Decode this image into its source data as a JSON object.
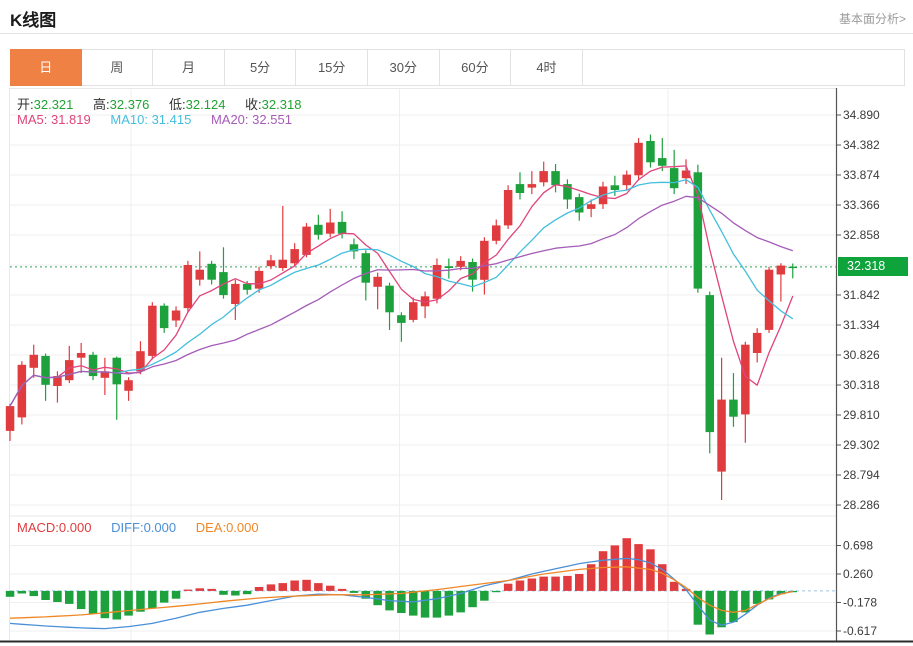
{
  "header": {
    "title": "K线图",
    "link_label": "基本面分析>"
  },
  "tabs": {
    "items": [
      "日",
      "周",
      "月",
      "5分",
      "15分",
      "30分",
      "60分",
      "4时"
    ],
    "active_index": 0
  },
  "ohlc": {
    "open_label": "开:",
    "open": "32.321",
    "high_label": "高:",
    "high": "32.376",
    "low_label": "低:",
    "low": "32.124",
    "close_label": "收:",
    "close": "32.318"
  },
  "ma": {
    "ma5_label": "MA5:",
    "ma5": "31.819",
    "ma10_label": "MA10:",
    "ma10": "31.415",
    "ma20_label": "MA20:",
    "ma20": "32.551"
  },
  "macd_legend": {
    "macd_label": "MACD:",
    "macd": "0.000",
    "diff_label": "DIFF:",
    "diff": "0.000",
    "dea_label": "DEA:",
    "dea": "0.000"
  },
  "current_price": "32.318",
  "colors": {
    "up": "#e03b3e",
    "down": "#1ca13d",
    "badge_bg": "#0fa33c",
    "ma5": "#e0447c",
    "ma10": "#44bedd",
    "ma20": "#a55cb8",
    "diff": "#4a8fd8",
    "dea": "#ef8726",
    "tab_active_bg": "#ef8144",
    "price_line": "#2ba55a",
    "macd_zero_line": "#9cc4e4",
    "ohlc_value": "#21a334",
    "grid": "#efefef",
    "axis_line": "#555555",
    "bottom_line": "#2b2b2b",
    "label_text": "#3b3b3b"
  },
  "chart_data": {
    "type": "candlestick",
    "main_panel": {
      "y_axis_labels": [
        34.89,
        34.382,
        33.874,
        33.366,
        32.858,
        31.842,
        31.334,
        30.826,
        30.318,
        29.81,
        29.302,
        28.794,
        28.286
      ],
      "unlabeled_gridline_value": 32.35,
      "current_price": 32.318,
      "ma_periods": [
        5,
        10,
        20
      ],
      "candle_format": [
        "open",
        "close",
        "low",
        "high"
      ],
      "candles": [
        [
          29.54,
          29.96,
          29.37,
          30.0
        ],
        [
          29.77,
          30.66,
          29.65,
          30.72
        ],
        [
          30.61,
          30.83,
          30.44,
          31.0
        ],
        [
          30.81,
          30.32,
          30.05,
          30.85
        ],
        [
          30.3,
          30.47,
          30.02,
          30.55
        ],
        [
          30.4,
          30.74,
          30.35,
          30.98
        ],
        [
          30.78,
          30.86,
          30.52,
          31.03
        ],
        [
          30.83,
          30.47,
          30.4,
          30.88
        ],
        [
          30.44,
          30.55,
          30.15,
          30.78
        ],
        [
          30.78,
          30.33,
          29.73,
          30.8
        ],
        [
          30.22,
          30.4,
          30.05,
          30.45
        ],
        [
          30.55,
          30.89,
          30.5,
          31.06
        ],
        [
          30.81,
          31.66,
          30.75,
          31.72
        ],
        [
          31.66,
          31.28,
          31.2,
          31.7
        ],
        [
          31.41,
          31.58,
          31.3,
          31.65
        ],
        [
          31.62,
          32.35,
          31.55,
          32.42
        ],
        [
          32.1,
          32.27,
          32.0,
          32.58
        ],
        [
          32.37,
          32.1,
          32.02,
          32.42
        ],
        [
          32.23,
          31.84,
          31.78,
          32.65
        ],
        [
          31.69,
          32.03,
          31.42,
          32.1
        ],
        [
          32.03,
          31.93,
          31.85,
          32.08
        ],
        [
          31.95,
          32.25,
          31.88,
          32.32
        ],
        [
          32.33,
          32.43,
          32.28,
          32.52
        ],
        [
          32.3,
          32.44,
          32.25,
          33.35
        ],
        [
          32.38,
          32.62,
          32.33,
          32.72
        ],
        [
          32.52,
          33.0,
          32.48,
          33.06
        ],
        [
          33.03,
          32.86,
          32.78,
          33.2
        ],
        [
          32.88,
          33.07,
          32.82,
          33.3
        ],
        [
          33.08,
          32.88,
          32.8,
          33.26
        ],
        [
          32.7,
          32.58,
          32.45,
          32.8
        ],
        [
          32.55,
          32.05,
          31.75,
          32.6
        ],
        [
          31.98,
          32.15,
          31.6,
          32.22
        ],
        [
          32.0,
          31.55,
          31.25,
          32.05
        ],
        [
          31.5,
          31.37,
          31.05,
          31.55
        ],
        [
          31.42,
          31.72,
          31.38,
          31.8
        ],
        [
          31.65,
          31.82,
          31.45,
          31.9
        ],
        [
          31.78,
          32.35,
          31.7,
          32.46
        ],
        [
          32.33,
          32.3,
          32.12,
          32.46
        ],
        [
          32.32,
          32.42,
          32.26,
          32.5
        ],
        [
          32.4,
          32.1,
          31.9,
          32.46
        ],
        [
          32.1,
          32.76,
          31.85,
          32.82
        ],
        [
          32.76,
          33.02,
          32.7,
          33.12
        ],
        [
          33.02,
          33.62,
          32.96,
          33.7
        ],
        [
          33.72,
          33.57,
          33.46,
          33.92
        ],
        [
          33.66,
          33.72,
          33.55,
          33.94
        ],
        [
          33.75,
          33.94,
          33.68,
          34.1
        ],
        [
          33.94,
          33.7,
          33.58,
          34.06
        ],
        [
          33.72,
          33.46,
          33.3,
          33.8
        ],
        [
          33.5,
          33.24,
          33.1,
          33.56
        ],
        [
          33.3,
          33.38,
          33.16,
          33.46
        ],
        [
          33.38,
          33.68,
          33.3,
          33.76
        ],
        [
          33.7,
          33.62,
          33.52,
          33.86
        ],
        [
          33.7,
          33.88,
          33.62,
          33.95
        ],
        [
          33.87,
          34.42,
          33.78,
          34.5
        ],
        [
          34.45,
          34.09,
          34.0,
          34.56
        ],
        [
          34.16,
          34.03,
          33.94,
          34.5
        ],
        [
          33.99,
          33.65,
          33.55,
          34.3
        ],
        [
          33.82,
          33.95,
          33.72,
          34.14
        ],
        [
          33.92,
          31.95,
          31.88,
          34.05
        ],
        [
          31.84,
          29.52,
          29.16,
          31.9
        ],
        [
          28.85,
          30.07,
          28.37,
          30.78
        ],
        [
          30.07,
          29.78,
          29.61,
          30.52
        ],
        [
          29.82,
          31.0,
          29.34,
          31.05
        ],
        [
          30.86,
          31.2,
          30.7,
          31.28
        ],
        [
          31.25,
          32.27,
          31.2,
          32.32
        ],
        [
          32.19,
          32.34,
          31.73,
          32.38
        ],
        [
          32.321,
          32.318,
          32.124,
          32.376
        ]
      ]
    },
    "macd_panel": {
      "y_axis_labels": [
        0.698,
        0.26,
        -0.178,
        -0.617
      ],
      "histogram": [
        -0.09,
        -0.04,
        -0.08,
        -0.14,
        -0.17,
        -0.2,
        -0.28,
        -0.35,
        -0.42,
        -0.44,
        -0.38,
        -0.32,
        -0.27,
        -0.18,
        -0.12,
        0.02,
        0.04,
        0.03,
        -0.06,
        -0.07,
        -0.05,
        0.06,
        0.1,
        0.12,
        0.16,
        0.17,
        0.12,
        0.08,
        0.03,
        -0.03,
        -0.12,
        -0.22,
        -0.3,
        -0.34,
        -0.38,
        -0.41,
        -0.41,
        -0.38,
        -0.33,
        -0.25,
        -0.15,
        -0.02,
        0.11,
        0.16,
        0.19,
        0.22,
        0.22,
        0.23,
        0.26,
        0.41,
        0.61,
        0.7,
        0.81,
        0.72,
        0.64,
        0.41,
        0.14,
        0.03,
        -0.52,
        -0.67,
        -0.56,
        -0.48,
        -0.33,
        -0.2,
        -0.13,
        -0.05,
        -0.02
      ],
      "diff_line_points": [
        [
          0,
          -0.5
        ],
        [
          3,
          -0.54
        ],
        [
          6,
          -0.57
        ],
        [
          8,
          -0.58
        ],
        [
          10,
          -0.55
        ],
        [
          12,
          -0.5
        ],
        [
          14,
          -0.42
        ],
        [
          16,
          -0.33
        ],
        [
          18,
          -0.27
        ],
        [
          20,
          -0.22
        ],
        [
          22,
          -0.15
        ],
        [
          24,
          -0.08
        ],
        [
          26,
          -0.05
        ],
        [
          28,
          -0.06
        ],
        [
          30,
          -0.1
        ],
        [
          32,
          -0.15
        ],
        [
          34,
          -0.17
        ],
        [
          36,
          -0.12
        ],
        [
          38,
          -0.04
        ],
        [
          40,
          0.08
        ],
        [
          42,
          0.16
        ],
        [
          44,
          0.26
        ],
        [
          46,
          0.34
        ],
        [
          48,
          0.42
        ],
        [
          50,
          0.47
        ],
        [
          52,
          0.5
        ],
        [
          53,
          0.48
        ],
        [
          54,
          0.43
        ],
        [
          55,
          0.33
        ],
        [
          56,
          0.18
        ],
        [
          57,
          0.02
        ],
        [
          58,
          -0.22
        ],
        [
          59,
          -0.45
        ],
        [
          60,
          -0.53
        ],
        [
          61,
          -0.48
        ],
        [
          62,
          -0.36
        ],
        [
          63,
          -0.22
        ],
        [
          64,
          -0.11
        ],
        [
          65,
          -0.04
        ],
        [
          66,
          -0.01
        ]
      ],
      "dea_line_points": [
        [
          0,
          -0.42
        ],
        [
          3,
          -0.4
        ],
        [
          6,
          -0.37
        ],
        [
          9,
          -0.32
        ],
        [
          12,
          -0.27
        ],
        [
          15,
          -0.22
        ],
        [
          18,
          -0.16
        ],
        [
          21,
          -0.11
        ],
        [
          24,
          -0.08
        ],
        [
          27,
          -0.06
        ],
        [
          30,
          -0.06
        ],
        [
          33,
          -0.04
        ],
        [
          36,
          0.02
        ],
        [
          39,
          0.09
        ],
        [
          42,
          0.16
        ],
        [
          45,
          0.26
        ],
        [
          48,
          0.33
        ],
        [
          50,
          0.36
        ],
        [
          52,
          0.37
        ],
        [
          54,
          0.33
        ],
        [
          55,
          0.27
        ],
        [
          56,
          0.17
        ],
        [
          57,
          0.05
        ],
        [
          58,
          -0.1
        ],
        [
          59,
          -0.22
        ],
        [
          60,
          -0.3
        ],
        [
          61,
          -0.33
        ],
        [
          62,
          -0.3
        ],
        [
          63,
          -0.21
        ],
        [
          64,
          -0.12
        ],
        [
          65,
          -0.05
        ],
        [
          66,
          -0.01
        ]
      ]
    }
  }
}
